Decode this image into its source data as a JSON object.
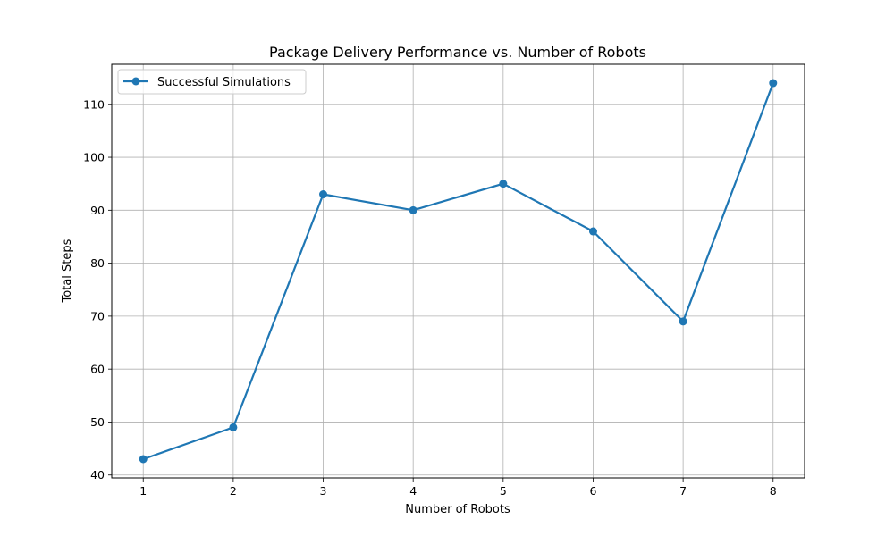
{
  "chart_data": {
    "type": "line",
    "title": "Package Delivery Performance vs. Number of Robots",
    "xlabel": "Number of Robots",
    "ylabel": "Total Steps",
    "x": [
      1,
      2,
      3,
      4,
      5,
      6,
      7,
      8
    ],
    "series": [
      {
        "name": "Successful Simulations",
        "values": [
          43,
          49,
          93,
          90,
          95,
          86,
          69,
          114
        ],
        "color": "#1f77b4"
      }
    ],
    "xticks": [
      1,
      2,
      3,
      4,
      5,
      6,
      7,
      8
    ],
    "yticks": [
      40,
      50,
      60,
      70,
      80,
      90,
      100,
      110
    ],
    "xlim": [
      0.65,
      8.35
    ],
    "ylim": [
      39.45,
      117.55
    ],
    "grid": true,
    "legend_position": "top-left"
  }
}
